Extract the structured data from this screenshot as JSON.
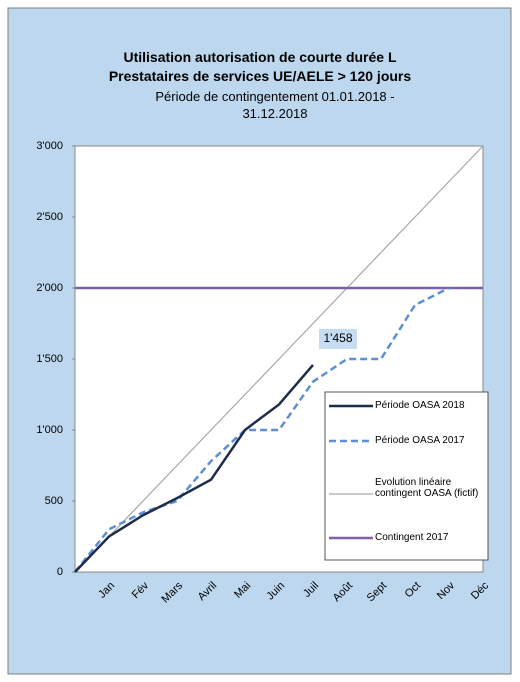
{
  "chart_data": {
    "type": "line",
    "title": [
      "Utilisation autorisation de courte durée L",
      "Prestataires de services UE/AELE > 120 jours"
    ],
    "subtitle": "Période de contingentement 01.01.2018 - 31.12.2018",
    "categories": [
      null,
      "Jan",
      "Fév",
      "Mars",
      "Avril",
      "Mai",
      "Juin",
      "Juil",
      "Août",
      "Sept",
      "Oct",
      "Nov",
      "Déc"
    ],
    "series": [
      {
        "name": "Période OASA 2018",
        "color": "#1f2d4a",
        "dash": false,
        "values": [
          0,
          250,
          400,
          520,
          650,
          1000,
          1180,
          1458,
          null,
          null,
          null,
          null,
          null
        ],
        "value_labels": [
          null,
          null,
          null,
          null,
          null,
          null,
          null,
          "1'458",
          null,
          null,
          null,
          null,
          null
        ]
      },
      {
        "name": "Période OASA 2017",
        "color": "#5b8fd8",
        "dash": true,
        "values": [
          0,
          300,
          420,
          500,
          780,
          1000,
          1000,
          1340,
          1500,
          1500,
          1880,
          2000,
          null
        ]
      },
      {
        "name": "Evolution linéaire contingent OASA (fictif)",
        "color": "#a6a6a6",
        "dash": false,
        "values": [
          0,
          250,
          500,
          750,
          1000,
          1250,
          1500,
          1750,
          2000,
          2250,
          2500,
          2750,
          3000
        ]
      },
      {
        "name": "Contingent 2017",
        "color": "#7f5fa8",
        "dash": false,
        "values": [
          2000,
          2000,
          2000,
          2000,
          2000,
          2000,
          2000,
          2000,
          2000,
          2000,
          2000,
          2000,
          2000
        ]
      }
    ],
    "ylim": [
      0,
      3000
    ],
    "yticks": [
      0,
      500,
      {
        "value": 1000,
        "label": "1'000"
      },
      {
        "value": 1500,
        "label": "1'500"
      },
      {
        "value": 2000,
        "label": "2'000"
      },
      {
        "value": 2500,
        "label": "2'500"
      },
      {
        "value": 3000,
        "label": "3'000"
      }
    ],
    "grid": false
  }
}
